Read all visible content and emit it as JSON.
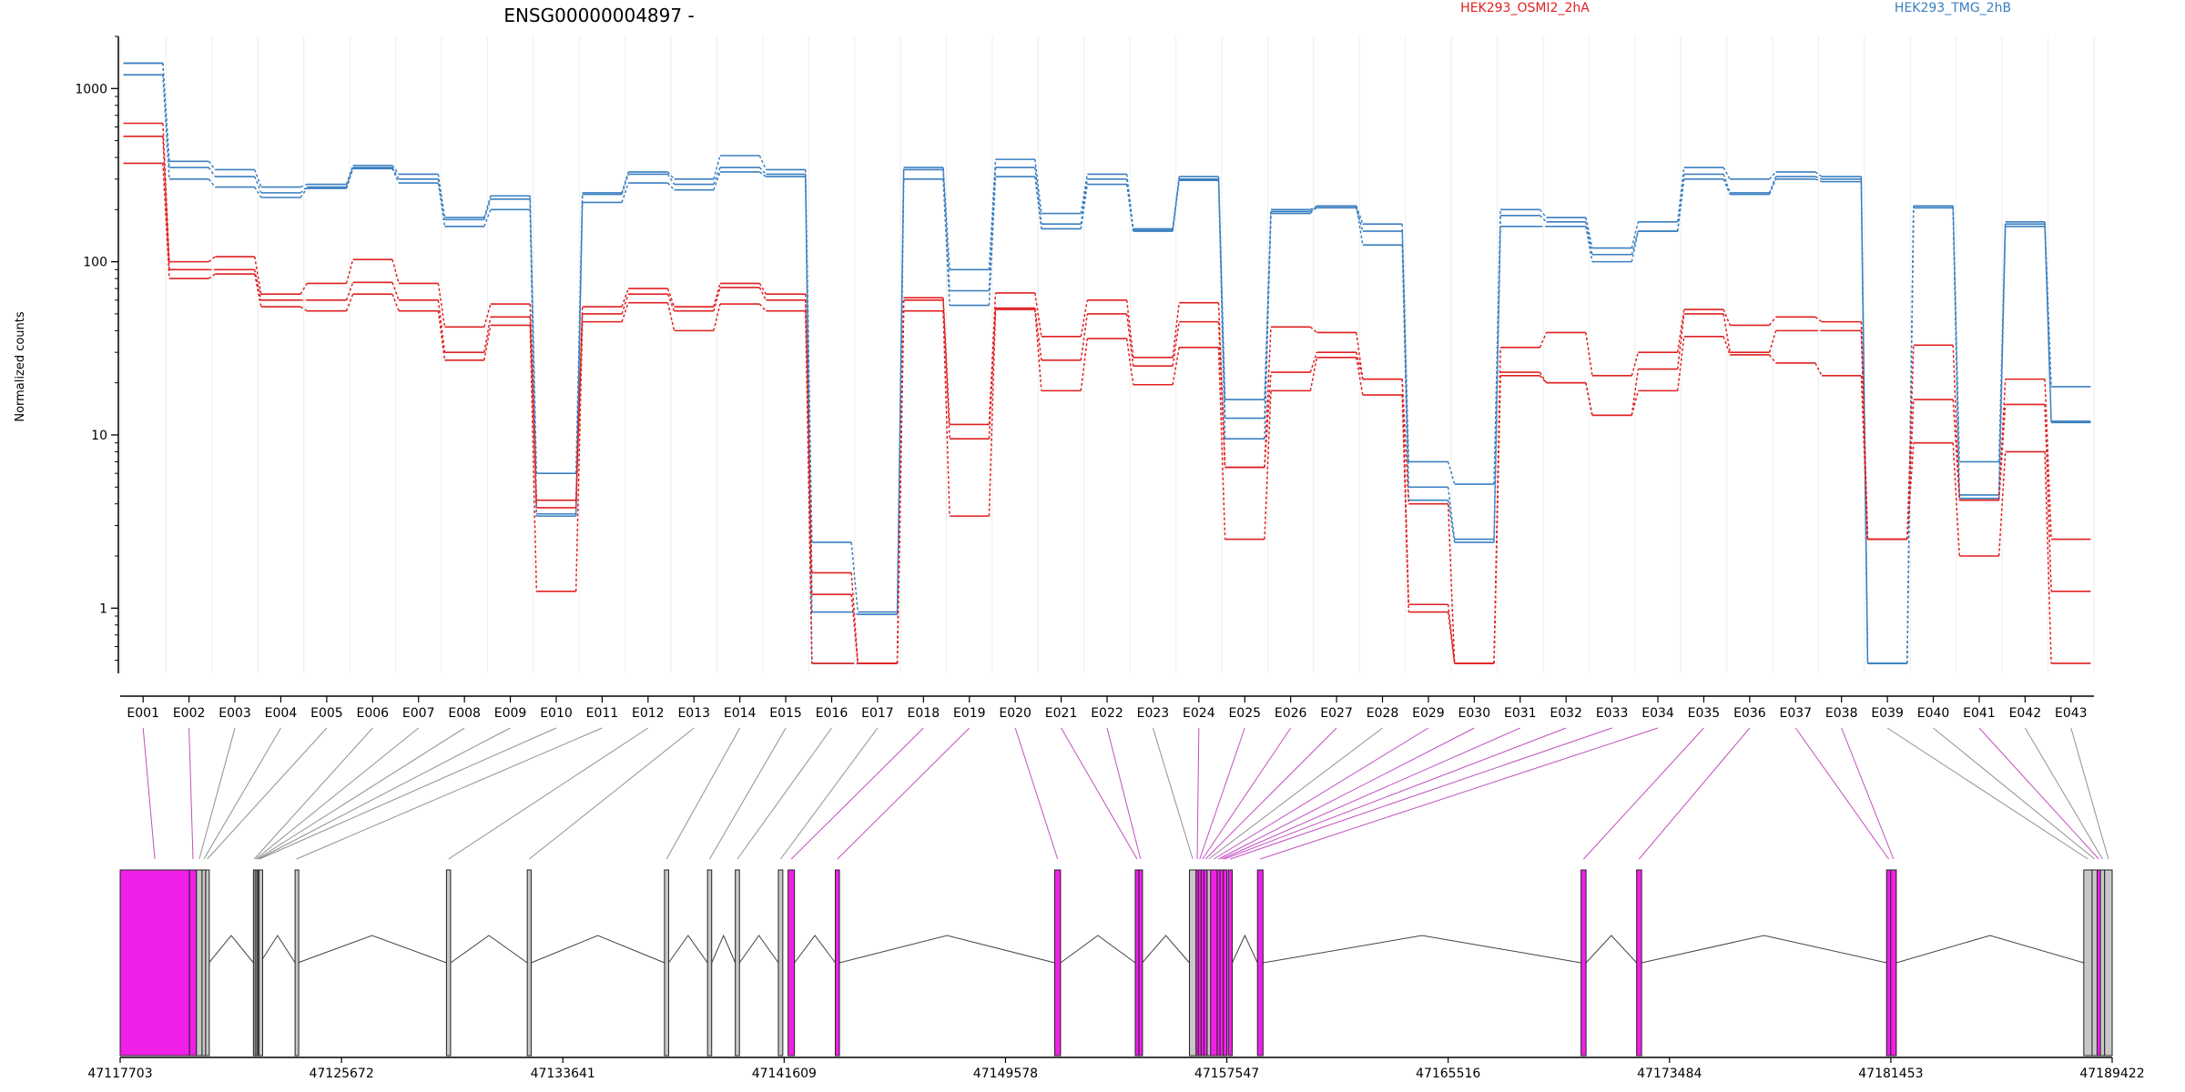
{
  "title": "ENSG00000004897 -",
  "ylabel": "Normalized counts",
  "colors": {
    "conditions": {
      "HEK293_OSMI2_2hA": "#e02020",
      "HEK293_TMG_2hB": "#3a7fc0"
    },
    "exon_highlight": "#f020e8",
    "exon_plain": "#c8c8c8",
    "link_highlight": "#c050c0",
    "link_plain": "#909090"
  },
  "legend": [
    {
      "label": "HEK293_OSMI2_2hA",
      "color": "#e02020"
    },
    {
      "label": "HEK293_TMG_2hB",
      "color": "#3a7fc0"
    }
  ],
  "chart_data": {
    "type": "line",
    "scale": "log",
    "ylim": [
      0.42,
      2000
    ],
    "yticks": [
      {
        "value": 1,
        "label": "1"
      },
      {
        "value": 10,
        "label": "10"
      },
      {
        "value": 100,
        "label": "100"
      },
      {
        "value": 1000,
        "label": "1000"
      }
    ],
    "categories": [
      "E001",
      "E002",
      "E003",
      "E004",
      "E005",
      "E006",
      "E007",
      "E008",
      "E009",
      "E010",
      "E011",
      "E012",
      "E013",
      "E014",
      "E015",
      "E016",
      "E017",
      "E018",
      "E019",
      "E020",
      "E021",
      "E022",
      "E023",
      "E024",
      "E025",
      "E026",
      "E027",
      "E028",
      "E029",
      "E030",
      "E031",
      "E032",
      "E033",
      "E034",
      "E035",
      "E036",
      "E037",
      "E038",
      "E039",
      "E040",
      "E041",
      "E042",
      "E043"
    ],
    "series": [
      {
        "condition": "HEK293_TMG_2hB",
        "values": [
          1400,
          380,
          340,
          270,
          280,
          360,
          320,
          180,
          240,
          6,
          250,
          330,
          300,
          410,
          340,
          2.4,
          0.95,
          350,
          90,
          390,
          190,
          320,
          155,
          310,
          16,
          200,
          210,
          165,
          7,
          5.2,
          200,
          180,
          120,
          170,
          350,
          300,
          330,
          310,
          0.48,
          210,
          7,
          170,
          19
        ]
      },
      {
        "condition": "HEK293_TMG_2hB",
        "values": [
          1400,
          350,
          310,
          250,
          270,
          350,
          300,
          175,
          230,
          3.5,
          245,
          320,
          280,
          350,
          320,
          0.95,
          0.92,
          340,
          68,
          350,
          165,
          300,
          152,
          300,
          12.5,
          195,
          205,
          150,
          5,
          2.5,
          185,
          170,
          110,
          150,
          320,
          250,
          310,
          300,
          0.48,
          205,
          4.5,
          165,
          12
        ]
      },
      {
        "condition": "HEK293_TMG_2hB",
        "values": [
          1200,
          300,
          270,
          235,
          265,
          345,
          285,
          160,
          200,
          3.4,
          220,
          285,
          260,
          330,
          310,
          0.48,
          0.48,
          300,
          56,
          310,
          155,
          280,
          150,
          295,
          9.5,
          190,
          210,
          125,
          4.2,
          2.4,
          160,
          160,
          100,
          150,
          300,
          245,
          300,
          290,
          0.48,
          205,
          4.3,
          160,
          11.8
        ]
      },
      {
        "condition": "HEK293_OSMI2_2hA",
        "values": [
          630,
          100,
          107,
          65,
          75,
          103,
          75,
          42,
          57,
          4.2,
          55,
          70,
          55,
          75,
          65,
          1.6,
          0.48,
          62,
          11.5,
          66,
          37,
          60,
          28,
          58,
          6.5,
          42,
          39,
          21,
          4,
          0.48,
          32,
          39,
          22,
          30,
          53,
          43,
          48,
          45,
          2.5,
          33,
          4.2,
          21,
          2.5
        ]
      },
      {
        "condition": "HEK293_OSMI2_2hA",
        "values": [
          530,
          90,
          90,
          60,
          60,
          76,
          60,
          30,
          48,
          3.8,
          50,
          65,
          52,
          71,
          60,
          1.2,
          0.48,
          60,
          9.5,
          54,
          27,
          50,
          25,
          45,
          6.5,
          23,
          30,
          21,
          1.05,
          0.48,
          23,
          20,
          13,
          24,
          50,
          30,
          40,
          40,
          2.5,
          16,
          4.2,
          15,
          1.25
        ]
      },
      {
        "condition": "HEK293_OSMI2_2hA",
        "values": [
          370,
          80,
          85,
          55,
          52,
          65,
          52,
          27,
          43,
          1.25,
          45,
          58,
          40,
          57,
          52,
          0.48,
          0.48,
          52,
          3.4,
          53,
          18,
          36,
          19.5,
          32,
          2.5,
          18,
          28,
          17,
          0.95,
          0.48,
          22,
          20,
          13,
          18,
          37,
          29,
          26,
          22,
          2.5,
          9,
          2,
          8,
          0.48
        ]
      }
    ]
  },
  "gene_model": {
    "axis_labels": [
      "47117703",
      "47125672",
      "47133641",
      "47141609",
      "47149578",
      "47157547",
      "47165516",
      "47173484",
      "47181453",
      "47189422"
    ],
    "exons": [
      {
        "id": "E001",
        "start": 47117703,
        "end": 47120200,
        "highlight": true
      },
      {
        "id": "E002",
        "start": 47120200,
        "end": 47120450,
        "highlight": true
      },
      {
        "id": "E003",
        "start": 47120450,
        "end": 47120650,
        "highlight": false
      },
      {
        "id": "E004",
        "start": 47120650,
        "end": 47120780,
        "highlight": false
      },
      {
        "id": "E005",
        "start": 47120780,
        "end": 47120900,
        "highlight": false
      },
      {
        "id": "E006",
        "start": 47122500,
        "end": 47122560,
        "highlight": false
      },
      {
        "id": "E007",
        "start": 47122560,
        "end": 47122620,
        "highlight": false
      },
      {
        "id": "E008",
        "start": 47122620,
        "end": 47122660,
        "highlight": false
      },
      {
        "id": "E009",
        "start": 47122660,
        "end": 47122700,
        "highlight": false
      },
      {
        "id": "E010",
        "start": 47122700,
        "end": 47122740,
        "highlight": false
      },
      {
        "id": "E011",
        "start": 47124000,
        "end": 47124100,
        "highlight": false
      },
      {
        "id": "E012",
        "start": 47129450,
        "end": 47129600,
        "highlight": false
      },
      {
        "id": "E013",
        "start": 47132360,
        "end": 47132500,
        "highlight": false
      },
      {
        "id": "E014",
        "start": 47137300,
        "end": 47137450,
        "highlight": false
      },
      {
        "id": "E015",
        "start": 47138850,
        "end": 47139000,
        "highlight": false
      },
      {
        "id": "E016",
        "start": 47139850,
        "end": 47140000,
        "highlight": false
      },
      {
        "id": "E017",
        "start": 47141400,
        "end": 47141560,
        "highlight": false
      },
      {
        "id": "E018",
        "start": 47141750,
        "end": 47141980,
        "highlight": true
      },
      {
        "id": "E019",
        "start": 47143450,
        "end": 47143600,
        "highlight": true
      },
      {
        "id": "E020",
        "start": 47151350,
        "end": 47151560,
        "highlight": true
      },
      {
        "id": "E021",
        "start": 47154250,
        "end": 47154380,
        "highlight": true
      },
      {
        "id": "E022",
        "start": 47154380,
        "end": 47154500,
        "highlight": true
      },
      {
        "id": "E023",
        "start": 47156200,
        "end": 47156440,
        "highlight": false
      },
      {
        "id": "E024",
        "start": 47156440,
        "end": 47156520,
        "highlight": true
      },
      {
        "id": "E025",
        "start": 47156520,
        "end": 47156620,
        "highlight": true
      },
      {
        "id": "E026",
        "start": 47156620,
        "end": 47156720,
        "highlight": true
      },
      {
        "id": "E027",
        "start": 47156720,
        "end": 47156840,
        "highlight": true
      },
      {
        "id": "E028",
        "start": 47156840,
        "end": 47156960,
        "highlight": false
      },
      {
        "id": "E029",
        "start": 47156960,
        "end": 47157200,
        "highlight": true
      },
      {
        "id": "E030",
        "start": 47157200,
        "end": 47157300,
        "highlight": true
      },
      {
        "id": "E031",
        "start": 47157300,
        "end": 47157420,
        "highlight": true
      },
      {
        "id": "E032",
        "start": 47157420,
        "end": 47157500,
        "highlight": true
      },
      {
        "id": "E033",
        "start": 47157600,
        "end": 47157740,
        "highlight": true
      },
      {
        "id": "E034",
        "start": 47158650,
        "end": 47158850,
        "highlight": true
      },
      {
        "id": "E035",
        "start": 47170300,
        "end": 47170480,
        "highlight": true
      },
      {
        "id": "E036",
        "start": 47172300,
        "end": 47172480,
        "highlight": true
      },
      {
        "id": "E037",
        "start": 47181300,
        "end": 47181450,
        "highlight": true
      },
      {
        "id": "E038",
        "start": 47181450,
        "end": 47181650,
        "highlight": true
      },
      {
        "id": "E039",
        "start": 47188400,
        "end": 47188700,
        "highlight": false
      },
      {
        "id": "E040",
        "start": 47188700,
        "end": 47188880,
        "highlight": false
      },
      {
        "id": "E041",
        "start": 47188880,
        "end": 47189000,
        "highlight": true
      },
      {
        "id": "E042",
        "start": 47189000,
        "end": 47189150,
        "highlight": false
      },
      {
        "id": "E043",
        "start": 47189150,
        "end": 47189422,
        "highlight": false
      }
    ]
  }
}
